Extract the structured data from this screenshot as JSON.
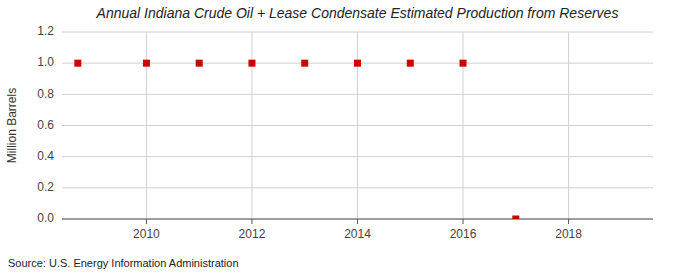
{
  "chart_data": {
    "type": "scatter",
    "title": "Annual Indiana Crude Oil + Lease Condensate Estimated Production from Reserves",
    "ylabel": "Million Barrels",
    "source": "Source: U.S. Energy Information Administration",
    "x": [
      2008.7,
      2010,
      2011,
      2012,
      2013,
      2014,
      2015,
      2016,
      2017
    ],
    "values": [
      1.0,
      1.0,
      1.0,
      1.0,
      1.0,
      1.0,
      1.0,
      1.0,
      0.0
    ],
    "color": "#cc0000",
    "marker": "square",
    "xlim": [
      2008.4,
      2019.6
    ],
    "ylim": [
      0.0,
      1.2
    ],
    "xticks": [
      2010,
      2012,
      2014,
      2016,
      2018
    ],
    "yticks": [
      {
        "value": 0.0,
        "label": "0.0"
      },
      0.2,
      0.4,
      0.6,
      0.8,
      {
        "value": 1.0,
        "label": "1.0"
      },
      1.2
    ],
    "grid": true
  }
}
